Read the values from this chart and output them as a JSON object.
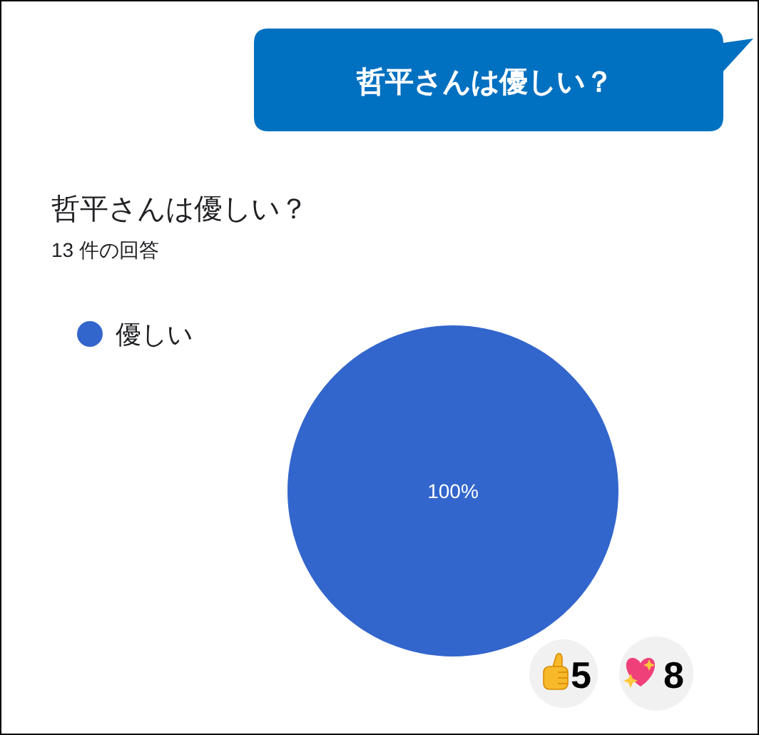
{
  "chart_data": {
    "type": "pie",
    "title": "哲平さんは優しい？",
    "subtitle": "13 件の回答",
    "categories": [
      "優しい"
    ],
    "values": [
      100
    ],
    "colors": [
      "#3366cc"
    ],
    "value_labels": [
      "100%"
    ],
    "legend": "top left",
    "annotations": [
      "哲平さんは優しい？",
      "5",
      "8"
    ]
  }
}
